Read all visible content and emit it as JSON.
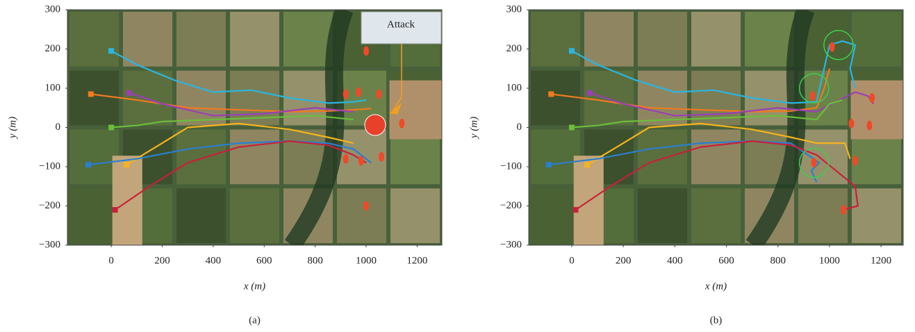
{
  "chart_data": [
    {
      "type": "line",
      "caption": "(a)",
      "xlabel": "x (m)",
      "ylabel": "y (m)",
      "annotation": "Attack",
      "xlim": [
        -172,
        1297
      ],
      "ylim": [
        -300,
        300
      ],
      "xticks": [
        0,
        200,
        400,
        600,
        800,
        1000,
        1200
      ],
      "yticks": [
        {
          "value": -300,
          "label": "−300"
        },
        {
          "value": -200,
          "label": "−200"
        },
        {
          "value": -100,
          "label": "−100"
        },
        0,
        100,
        200,
        300
      ],
      "series": [
        {
          "color": "#2cb5e0",
          "x": [
            0,
            100,
            250,
            400,
            550,
            700,
            850,
            950,
            1000
          ],
          "values": [
            195,
            160,
            120,
            90,
            95,
            75,
            62,
            65,
            70
          ]
        },
        {
          "color": "#f07a1e",
          "x": [
            -80,
            100,
            300,
            500,
            700,
            850,
            950,
            1020
          ],
          "values": [
            85,
            70,
            50,
            45,
            40,
            42,
            45,
            48
          ]
        },
        {
          "color": "#9b3fb5",
          "x": [
            70,
            200,
            400,
            600,
            800,
            950
          ],
          "values": [
            88,
            60,
            30,
            35,
            50,
            40
          ]
        },
        {
          "color": "#6abf3a",
          "x": [
            0,
            100,
            200,
            400,
            600,
            800,
            950
          ],
          "values": [
            0,
            5,
            15,
            20,
            25,
            30,
            20
          ]
        },
        {
          "color": "#f5b41e",
          "x": [
            60,
            200,
            300,
            500,
            700,
            850,
            950
          ],
          "values": [
            -95,
            -40,
            0,
            10,
            -5,
            -25,
            -40
          ]
        },
        {
          "color": "#2a7fd0",
          "x": [
            -90,
            100,
            300,
            500,
            700,
            850,
            950,
            1020
          ],
          "values": [
            -95,
            -80,
            -55,
            -40,
            -35,
            -40,
            -55,
            -90
          ]
        },
        {
          "color": "#c8203c",
          "x": [
            15,
            150,
            300,
            500,
            700,
            850,
            950,
            1000
          ],
          "values": [
            -210,
            -150,
            -90,
            -50,
            -35,
            -45,
            -70,
            -90
          ]
        }
      ],
      "targets": {
        "color": "#ee4a2a",
        "x": [
          920,
          970,
          1050,
          1140,
          920,
          980,
          1060,
          1000,
          1000
        ],
        "values": [
          85,
          90,
          85,
          10,
          -80,
          -85,
          -75,
          -200,
          195
        ]
      }
    },
    {
      "type": "line",
      "caption": "(b)",
      "xlabel": "x (m)",
      "ylabel": "y (m)",
      "xlim": [
        -167,
        1286
      ],
      "ylim": [
        -300,
        300
      ],
      "xticks": [
        0,
        200,
        400,
        600,
        800,
        1000,
        1200
      ],
      "yticks": [
        {
          "value": -300,
          "label": "−300"
        },
        {
          "value": -200,
          "label": "−200"
        },
        {
          "value": -100,
          "label": "−100"
        },
        0,
        100,
        200,
        300
      ],
      "series": [
        {
          "color": "#2cb5e0",
          "x": [
            0,
            100,
            250,
            400,
            550,
            700,
            850,
            950,
            1000,
            1050,
            1100,
            1080,
            1100
          ],
          "values": [
            195,
            160,
            120,
            90,
            95,
            75,
            62,
            65,
            210,
            220,
            210,
            150,
            100
          ]
        },
        {
          "color": "#f07a1e",
          "x": [
            -80,
            100,
            300,
            500,
            700,
            850,
            950,
            980,
            1000
          ],
          "values": [
            85,
            70,
            50,
            45,
            40,
            42,
            50,
            100,
            150
          ]
        },
        {
          "color": "#9b3fb5",
          "x": [
            70,
            200,
            400,
            600,
            800,
            950,
            1100,
            1150,
            1170
          ],
          "values": [
            88,
            60,
            30,
            35,
            50,
            40,
            90,
            80,
            60
          ]
        },
        {
          "color": "#6abf3a",
          "x": [
            0,
            100,
            200,
            400,
            600,
            800,
            950,
            1000,
            1050
          ],
          "values": [
            0,
            5,
            15,
            20,
            25,
            30,
            20,
            60,
            70
          ]
        },
        {
          "color": "#f5b41e",
          "x": [
            60,
            200,
            300,
            500,
            700,
            850,
            950,
            1060,
            1080
          ],
          "values": [
            -95,
            -40,
            0,
            10,
            -5,
            -25,
            -40,
            -40,
            -80
          ]
        },
        {
          "color": "#2a7fd0",
          "x": [
            -90,
            100,
            300,
            500,
            700,
            850,
            960,
            930,
            950
          ],
          "values": [
            -95,
            -80,
            -55,
            -40,
            -35,
            -40,
            -90,
            -110,
            -140
          ]
        },
        {
          "color": "#c8203c",
          "x": [
            15,
            150,
            300,
            500,
            700,
            850,
            950,
            1100,
            1110,
            1050
          ],
          "values": [
            -210,
            -150,
            -90,
            -50,
            -35,
            -45,
            -70,
            -150,
            -200,
            -210
          ]
        }
      ],
      "targets": {
        "color": "#ee4a2a",
        "x": [
          1010,
          935,
          1100,
          940,
          1165,
          1085,
          1155,
          1055
        ],
        "values": [
          205,
          80,
          -85,
          -90,
          75,
          10,
          5,
          -210
        ]
      },
      "highlights": {
        "color": "#3ccf4e",
        "x": [
          1035,
          940,
          940
        ],
        "values": [
          210,
          100,
          -90
        ]
      }
    }
  ]
}
